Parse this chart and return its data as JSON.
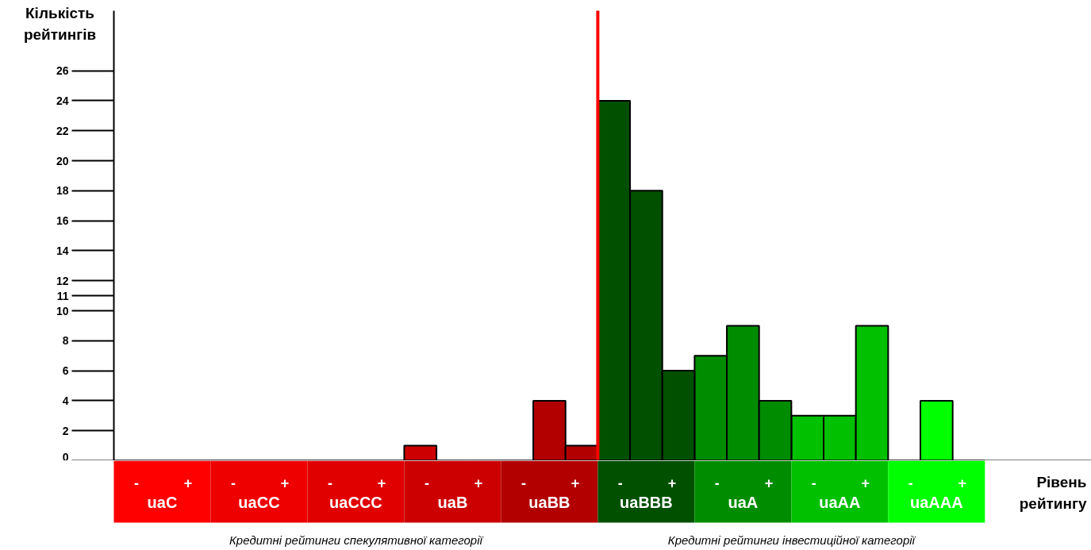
{
  "chart_data": {
    "type": "bar",
    "ylabel": "Кількість рейтингів",
    "xlabel": "Рівень рейтингу",
    "annotations": [
      "Кредитні рейтинги спекулятивної категорії",
      "Кредитні рейтинги інвестиційної категорії"
    ],
    "categories": [
      "uaC",
      "uaCC",
      "uaCCC",
      "uaB",
      "uaBB",
      "uaBBB",
      "uaA",
      "uaAA",
      "uaAAA"
    ],
    "series": [
      {
        "name": "-",
        "colors": [
          "#ff0000",
          "#ee0000",
          "#e10000",
          "#cc0000",
          "#b20000",
          "#005000",
          "#008c00",
          "#00c000",
          "#00ff00"
        ],
        "values": [
          0,
          0,
          0,
          1,
          0,
          24,
          7,
          3,
          0
        ]
      },
      {
        "colors": [
          "#ff0000",
          "#ee0000",
          "#e10000",
          "#cc0000",
          "#b20000",
          "#005000",
          "#008c00",
          "#00c000",
          "#00ff00"
        ],
        "values": [
          0,
          0,
          0,
          0,
          4,
          18,
          9,
          3,
          4
        ]
      },
      {
        "name": "+",
        "colors": [
          "#ff0000",
          "#ee0000",
          "#e10000",
          "#cc0000",
          "#b20000",
          "#005000",
          "#008c00",
          "#00c000",
          "#00ff00"
        ],
        "values": [
          0,
          0,
          0,
          0,
          1,
          6,
          4,
          9,
          0
        ]
      }
    ],
    "ylim": [
      0,
      30
    ],
    "yticks": [
      0,
      2,
      4,
      6,
      8,
      10,
      11,
      12,
      14,
      16,
      18,
      20,
      22,
      24,
      26
    ],
    "ref_lines": [
      {
        "axis": "x",
        "value": "uaBBB",
        "color": "#ff0000"
      }
    ],
    "grid": false
  }
}
